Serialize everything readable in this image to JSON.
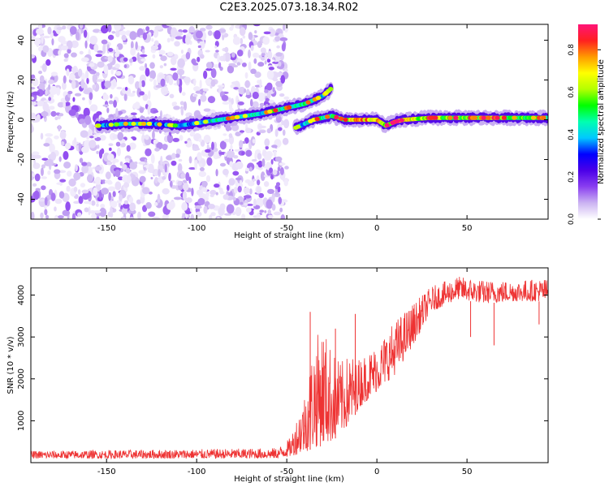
{
  "title": "C2E3.2025.073.18.34.R02",
  "chart_data": [
    {
      "type": "heatmap",
      "xlabel": "Height of straight line (km)",
      "ylabel": "Frequency (Hz)",
      "xlim": [
        -192,
        95
      ],
      "ylim": [
        -50,
        48
      ],
      "x_ticks": [
        -150,
        -100,
        -50,
        0,
        50
      ],
      "y_ticks": [
        -40,
        -20,
        0,
        20,
        40
      ],
      "colorbar": {
        "label": "Normalized spectral amplitude",
        "range": [
          0,
          0.92
        ],
        "ticks": [
          0.0,
          0.2,
          0.4,
          0.6,
          0.8
        ],
        "stops": [
          "#ffffff",
          "#cbb3f2",
          "#8a3ff0",
          "#4b00e8",
          "#0000ff",
          "#00c8ff",
          "#00ffb0",
          "#00ff00",
          "#b4ff00",
          "#ffff00",
          "#ff9a00",
          "#ff2020",
          "#ff1478"
        ]
      },
      "noise_region": {
        "x": [
          -192,
          -50
        ],
        "y": [
          -50,
          48
        ]
      },
      "ridge": [
        {
          "x": -155,
          "y": -3,
          "a": 0.35
        },
        {
          "x": -140,
          "y": -2,
          "a": 0.45
        },
        {
          "x": -125,
          "y": -2,
          "a": 0.4
        },
        {
          "x": -110,
          "y": -3,
          "a": 0.35
        },
        {
          "x": -95,
          "y": -1,
          "a": 0.45
        },
        {
          "x": -80,
          "y": 1,
          "a": 0.5
        },
        {
          "x": -65,
          "y": 3,
          "a": 0.45
        },
        {
          "x": -55,
          "y": 5,
          "a": 0.55
        },
        {
          "x": -50,
          "y": 6,
          "a": 0.5
        },
        {
          "x": -40,
          "y": 8,
          "a": 0.5
        },
        {
          "x": -30,
          "y": 12,
          "a": 0.45
        },
        {
          "x": -25,
          "y": 16,
          "a": 0.3
        },
        {
          "x": -45,
          "y": -4,
          "a": 0.4
        },
        {
          "x": -35,
          "y": 0,
          "a": 0.5
        },
        {
          "x": -25,
          "y": 2,
          "a": 0.55
        },
        {
          "x": -18,
          "y": 0,
          "a": 0.6
        },
        {
          "x": -10,
          "y": 0,
          "a": 0.8
        },
        {
          "x": 0,
          "y": 0,
          "a": 0.75
        },
        {
          "x": 5,
          "y": -3,
          "a": 0.7
        },
        {
          "x": 10,
          "y": -1,
          "a": 0.75
        },
        {
          "x": 15,
          "y": 0,
          "a": 0.7
        },
        {
          "x": 30,
          "y": 1,
          "a": 0.65
        },
        {
          "x": 50,
          "y": 1,
          "a": 0.6
        },
        {
          "x": 70,
          "y": 1,
          "a": 0.6
        },
        {
          "x": 95,
          "y": 1,
          "a": 0.55
        }
      ]
    },
    {
      "type": "line",
      "xlabel": "Height of straight line (km)",
      "ylabel": "SNR (10 * v/v)",
      "xlim": [
        -192,
        95
      ],
      "ylim": [
        0,
        4650
      ],
      "x_ticks": [
        -150,
        -100,
        -50,
        0,
        50
      ],
      "y_ticks": [
        1000,
        2000,
        3000,
        4000
      ],
      "color": "#ee3333",
      "envelope": [
        {
          "x": -192,
          "lo": 100,
          "hi": 280
        },
        {
          "x": -150,
          "lo": 100,
          "hi": 300
        },
        {
          "x": -100,
          "lo": 100,
          "hi": 320
        },
        {
          "x": -55,
          "lo": 100,
          "hi": 350
        },
        {
          "x": -48,
          "lo": 150,
          "hi": 600
        },
        {
          "x": -40,
          "lo": 250,
          "hi": 1700
        },
        {
          "x": -35,
          "lo": 350,
          "hi": 2900
        },
        {
          "x": -30,
          "lo": 400,
          "hi": 3300
        },
        {
          "x": -25,
          "lo": 500,
          "hi": 2700
        },
        {
          "x": -20,
          "lo": 700,
          "hi": 2400
        },
        {
          "x": -15,
          "lo": 900,
          "hi": 2600
        },
        {
          "x": -10,
          "lo": 1300,
          "hi": 2500
        },
        {
          "x": 0,
          "lo": 1700,
          "hi": 2800
        },
        {
          "x": 10,
          "lo": 2100,
          "hi": 3400
        },
        {
          "x": 20,
          "lo": 2800,
          "hi": 3800
        },
        {
          "x": 30,
          "lo": 3600,
          "hi": 4200
        },
        {
          "x": 45,
          "lo": 3900,
          "hi": 4450
        },
        {
          "x": 60,
          "lo": 3800,
          "hi": 4350
        },
        {
          "x": 75,
          "lo": 3850,
          "hi": 4350
        },
        {
          "x": 95,
          "lo": 3850,
          "hi": 4400
        }
      ],
      "spikes": [
        {
          "x": -37,
          "y": 3600
        },
        {
          "x": -12,
          "y": 3550
        },
        {
          "x": -23,
          "y": 3200
        },
        {
          "x": 65,
          "y": 2800
        },
        {
          "x": 52,
          "y": 3000
        },
        {
          "x": 90,
          "y": 3300
        }
      ]
    }
  ]
}
